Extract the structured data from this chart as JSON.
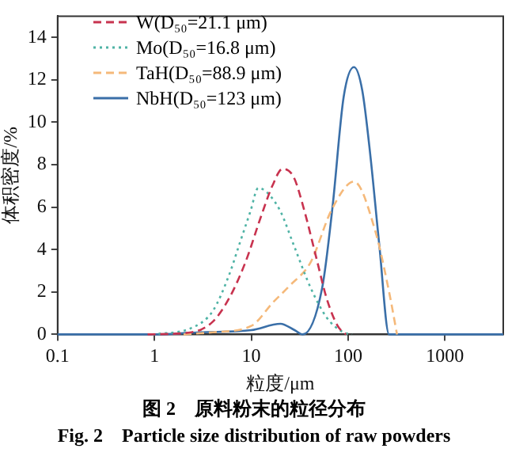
{
  "chart_data": {
    "type": "line",
    "xlabel": "粒度/μm",
    "ylabel": "体积密度/%",
    "log": "x",
    "xlim": [
      0.1,
      4000
    ],
    "xticks": [
      0.1,
      1,
      10,
      100,
      1000
    ],
    "ylim": [
      0,
      15
    ],
    "yticks": [
      0,
      2,
      4,
      6,
      8,
      10,
      12,
      14
    ],
    "grid": false,
    "legend": "top left",
    "marker": "none",
    "annotations": [
      "图 2　原料粉末的粒径分布",
      "Fig. 2　Particle size distribution of raw powders"
    ],
    "series": [
      {
        "name": "W(D₅₀=21.1 μm)",
        "color": "#c8334f",
        "line_style": "dashed",
        "x": [
          0.85,
          2.4,
          4,
          5.9,
          8.7,
          12.7,
          16.5,
          21,
          27.5,
          35,
          47,
          60,
          78,
          95
        ],
        "values": [
          0,
          0.1,
          0.6,
          1.7,
          3.4,
          5.6,
          7.0,
          7.8,
          7.4,
          5.9,
          3.6,
          1.7,
          0.4,
          0
        ]
      },
      {
        "name": "Mo(D₅₀=16.8 μm)",
        "color": "#4fb3a5",
        "line_style": "dotted",
        "x": [
          0.95,
          2.4,
          4,
          5.9,
          7.6,
          9.8,
          11.8,
          14.5,
          20,
          27.5,
          41,
          60,
          89,
          110
        ],
        "values": [
          0,
          0.3,
          1.1,
          2.8,
          4.3,
          5.8,
          6.9,
          6.7,
          5.8,
          4.2,
          2.2,
          0.8,
          0.1,
          0
        ]
      },
      {
        "name": "TaH(D₅₀=88.9 μm)",
        "color": "#f5b97a",
        "line_style": "dashed",
        "x": [
          2,
          4,
          10,
          16.7,
          25,
          41,
          68,
          115,
          190,
          265,
          320
        ],
        "values": [
          0,
          0.1,
          0.4,
          1.5,
          2.3,
          3.4,
          5.9,
          7.2,
          4.9,
          2.0,
          0
        ]
      },
      {
        "name": "NbH(D₅₀=123 μm)",
        "color": "#3a6fa8",
        "line_style": "solid",
        "x": [
          0.1,
          1,
          3,
          10,
          20,
          28,
          34,
          54,
          69,
          90,
          115,
          140,
          170,
          210,
          265,
          4000
        ],
        "values": [
          0,
          0,
          0.1,
          0.2,
          0.5,
          0.2,
          0,
          2.2,
          6,
          11.2,
          12.6,
          11.5,
          8.4,
          4.2,
          0,
          0
        ]
      }
    ]
  }
}
